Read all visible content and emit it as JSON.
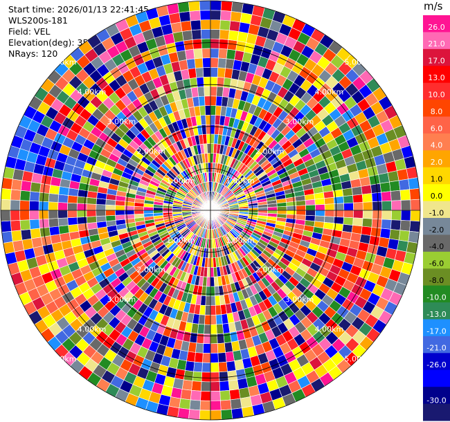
{
  "info": {
    "start_time": "Start time: 2026/01/13 22:41:45",
    "instrument": "WLS200s-181",
    "field": "Field: VEL",
    "elevation": "Elevation(deg): 35.00",
    "nrays": "NRays: 120"
  },
  "chart_data": {
    "type": "heatmap",
    "subtype": "ppi-polar",
    "field": "VEL",
    "units": "m/s",
    "nrays": 120,
    "elevation_deg": 35.0,
    "range_rings_labels": [
      "1.00km",
      "2.00km",
      "3.00km",
      "4.00km",
      "5.00km"
    ],
    "colorbar": {
      "unit_label": "m/s",
      "tick_labels": [
        "26.0",
        "21.0",
        "17.0",
        "13.0",
        "10.0",
        "8.0",
        "6.0",
        "4.0",
        "2.0",
        "1.0",
        "0.0",
        "-1.0",
        "-2.0",
        "-4.0",
        "-6.0",
        "-8.0",
        "-10.0",
        "-13.0",
        "-17.0",
        "-21.0",
        "-26.0",
        "-30.0"
      ],
      "colors": [
        "#ff1493",
        "#ff69b4",
        "#dc143c",
        "#ff0000",
        "#ff2d2d",
        "#ff4500",
        "#ff6347",
        "#ff7f50",
        "#ffa500",
        "#ffd700",
        "#ffff00",
        "#f0e68c",
        "#778899",
        "#696969",
        "#9acd32",
        "#6b8e23",
        "#228b22",
        "#2e8b57",
        "#1e90ff",
        "#4169e1",
        "#0000cd",
        "#0000ff",
        "#00008b",
        "#191970"
      ]
    }
  }
}
